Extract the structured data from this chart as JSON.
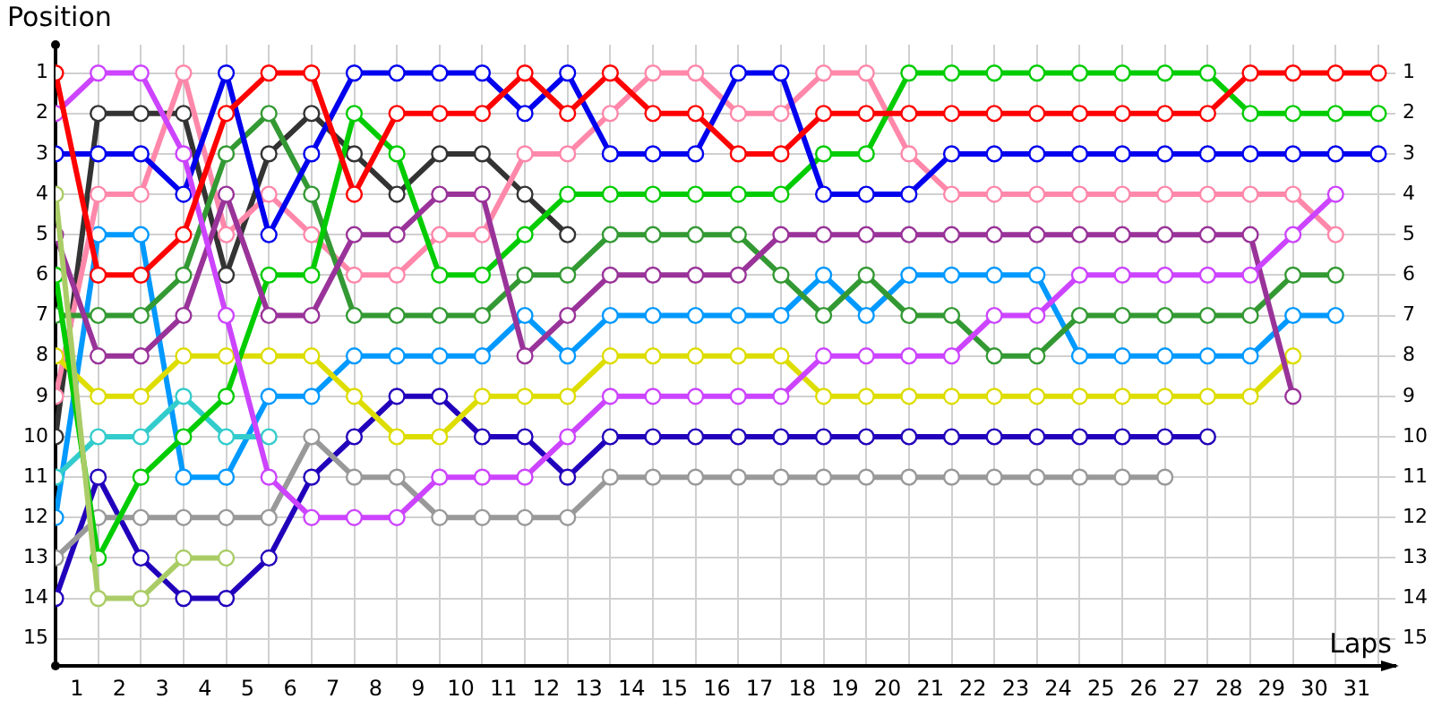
{
  "chart_data": {
    "type": "line",
    "xlabel": "Laps",
    "ylabel": "Position",
    "x": [
      0,
      1,
      2,
      3,
      4,
      5,
      6,
      7,
      8,
      9,
      10,
      11,
      12,
      13,
      14,
      15,
      16,
      17,
      18,
      19,
      20,
      21,
      22,
      23,
      24,
      25,
      26,
      27,
      28,
      29,
      30,
      31
    ],
    "xlim": [
      0,
      31.4
    ],
    "xticks": [
      {
        "value": 0,
        "label": null
      },
      {
        "value": 0.5,
        "label": "1"
      },
      {
        "value": 1,
        "label": null
      },
      {
        "value": 1.5,
        "label": "2"
      },
      {
        "value": 2,
        "label": null
      },
      {
        "value": 2.5,
        "label": "3"
      },
      {
        "value": 3,
        "label": null
      },
      {
        "value": 3.5,
        "label": "4"
      },
      {
        "value": 4,
        "label": null
      },
      {
        "value": 4.5,
        "label": "5"
      },
      {
        "value": 5,
        "label": null
      },
      {
        "value": 5.5,
        "label": "6"
      },
      {
        "value": 6,
        "label": null
      },
      {
        "value": 6.5,
        "label": "7"
      },
      {
        "value": 7,
        "label": null
      },
      {
        "value": 7.5,
        "label": "8"
      },
      {
        "value": 8,
        "label": null
      },
      {
        "value": 8.5,
        "label": "9"
      },
      {
        "value": 9,
        "label": null
      },
      {
        "value": 9.5,
        "label": "10"
      },
      {
        "value": 10,
        "label": null
      },
      {
        "value": 10.5,
        "label": "11"
      },
      {
        "value": 11,
        "label": null
      },
      {
        "value": 11.5,
        "label": "12"
      },
      {
        "value": 12,
        "label": null
      },
      {
        "value": 12.5,
        "label": "13"
      },
      {
        "value": 13,
        "label": null
      },
      {
        "value": 13.5,
        "label": "14"
      },
      {
        "value": 14,
        "label": null
      },
      {
        "value": 14.5,
        "label": "15"
      },
      {
        "value": 15,
        "label": null
      },
      {
        "value": 15.5,
        "label": "16"
      },
      {
        "value": 16,
        "label": null
      },
      {
        "value": 16.5,
        "label": "17"
      },
      {
        "value": 17,
        "label": null
      },
      {
        "value": 17.5,
        "label": "18"
      },
      {
        "value": 18,
        "label": null
      },
      {
        "value": 18.5,
        "label": "19"
      },
      {
        "value": 19,
        "label": null
      },
      {
        "value": 19.5,
        "label": "20"
      },
      {
        "value": 20,
        "label": null
      },
      {
        "value": 20.5,
        "label": "21"
      },
      {
        "value": 21,
        "label": null
      },
      {
        "value": 21.5,
        "label": "22"
      },
      {
        "value": 22,
        "label": null
      },
      {
        "value": 22.5,
        "label": "23"
      },
      {
        "value": 23,
        "label": null
      },
      {
        "value": 23.5,
        "label": "24"
      },
      {
        "value": 24,
        "label": null
      },
      {
        "value": 24.5,
        "label": "25"
      },
      {
        "value": 25,
        "label": null
      },
      {
        "value": 25.5,
        "label": "26"
      },
      {
        "value": 26,
        "label": null
      },
      {
        "value": 26.5,
        "label": "27"
      },
      {
        "value": 27,
        "label": null
      },
      {
        "value": 27.5,
        "label": "28"
      },
      {
        "value": 28,
        "label": null
      },
      {
        "value": 28.5,
        "label": "29"
      },
      {
        "value": 29,
        "label": null
      },
      {
        "value": 29.5,
        "label": "30"
      },
      {
        "value": 30,
        "label": null
      },
      {
        "value": 30.5,
        "label": "31"
      },
      {
        "value": 31,
        "label": null
      }
    ],
    "ylim": [
      15.67,
      0.3
    ],
    "yticks": [
      1,
      2,
      3,
      4,
      5,
      6,
      7,
      8,
      9,
      10,
      11,
      12,
      13,
      14,
      15
    ],
    "y2lim": [
      15.67,
      0.3
    ],
    "y2ticks": [
      1,
      2,
      3,
      4,
      5,
      6,
      7,
      8,
      9,
      10,
      11,
      12,
      13,
      14,
      15
    ],
    "grid": true,
    "legend": false,
    "marker": "circle",
    "line_style": "solid",
    "series": [
      {
        "color": "#ff0000",
        "values": [
          1,
          6,
          6,
          5,
          2,
          1,
          1,
          4,
          2,
          2,
          2,
          1,
          2,
          1,
          2,
          2,
          3,
          3,
          2,
          2,
          2,
          2,
          2,
          2,
          2,
          2,
          2,
          2,
          1,
          1,
          1,
          1
        ]
      },
      {
        "color": "#cc44ff",
        "x": [
          0,
          1,
          2,
          3,
          4,
          5,
          6,
          7,
          8,
          9,
          10,
          11,
          12,
          13,
          14,
          15,
          16,
          17,
          18,
          19,
          20,
          21,
          22,
          23,
          24,
          25,
          26,
          27,
          28,
          29,
          30
        ],
        "values": [
          2,
          1,
          1,
          3,
          7,
          11,
          12,
          12,
          12,
          11,
          11,
          11,
          10,
          9,
          9,
          9,
          9,
          9,
          8,
          8,
          8,
          8,
          7,
          7,
          6,
          6,
          6,
          6,
          6,
          5,
          4
        ]
      },
      {
        "color": "#0000ee",
        "values": [
          3,
          3,
          3,
          4,
          1,
          5,
          3,
          1,
          1,
          1,
          1,
          2,
          1,
          3,
          3,
          3,
          1,
          1,
          4,
          4,
          4,
          3,
          3,
          3,
          3,
          3,
          3,
          3,
          3,
          3,
          3,
          3
        ]
      },
      {
        "color": "#aacc66",
        "x": [
          0,
          1,
          2,
          3,
          4
        ],
        "values": [
          4,
          14,
          14,
          13,
          13
        ]
      },
      {
        "color": "#993399",
        "x": [
          0,
          1,
          2,
          3,
          4,
          5,
          6,
          7,
          8,
          9,
          10,
          11,
          12,
          13,
          14,
          15,
          16,
          17,
          18,
          19,
          20,
          21,
          22,
          23,
          24,
          25,
          26,
          27,
          28,
          29
        ],
        "values": [
          5,
          8,
          8,
          7,
          4,
          7,
          7,
          5,
          5,
          4,
          4,
          8,
          7,
          6,
          6,
          6,
          6,
          5,
          5,
          5,
          5,
          5,
          5,
          5,
          5,
          5,
          5,
          5,
          5,
          9
        ]
      },
      {
        "color": "#00cc00",
        "values": [
          6,
          13,
          11,
          10,
          9,
          6,
          6,
          2,
          3,
          6,
          6,
          5,
          4,
          4,
          4,
          4,
          4,
          4,
          3,
          3,
          1,
          1,
          1,
          1,
          1,
          1,
          1,
          1,
          2,
          2,
          2,
          2
        ]
      },
      {
        "color": "#339933",
        "x": [
          0,
          1,
          2,
          3,
          4,
          5,
          6,
          7,
          8,
          9,
          10,
          11,
          12,
          13,
          14,
          15,
          16,
          17,
          18,
          19,
          20,
          21,
          22,
          23,
          24,
          25,
          26,
          27,
          28,
          29,
          30
        ],
        "values": [
          7,
          7,
          7,
          6,
          3,
          2,
          4,
          7,
          7,
          7,
          7,
          6,
          6,
          5,
          5,
          5,
          5,
          6,
          7,
          6,
          7,
          7,
          8,
          8,
          7,
          7,
          7,
          7,
          7,
          6,
          6
        ]
      },
      {
        "color": "#dddd00",
        "x": [
          0,
          1,
          2,
          3,
          4,
          5,
          6,
          7,
          8,
          9,
          10,
          11,
          12,
          13,
          14,
          15,
          16,
          17,
          18,
          19,
          20,
          21,
          22,
          23,
          24,
          25,
          26,
          27,
          28,
          29
        ],
        "values": [
          8,
          9,
          9,
          8,
          8,
          8,
          8,
          9,
          10,
          10,
          9,
          9,
          9,
          8,
          8,
          8,
          8,
          8,
          9,
          9,
          9,
          9,
          9,
          9,
          9,
          9,
          9,
          9,
          9,
          8
        ]
      },
      {
        "color": "#ff88aa",
        "x": [
          0,
          1,
          2,
          3,
          4,
          5,
          6,
          7,
          8,
          9,
          10,
          11,
          12,
          13,
          14,
          15,
          16,
          17,
          18,
          19,
          20,
          21,
          22,
          23,
          24,
          25,
          26,
          27,
          28,
          29,
          30
        ],
        "values": [
          9,
          4,
          4,
          1,
          5,
          4,
          5,
          6,
          6,
          5,
          5,
          3,
          3,
          2,
          1,
          1,
          2,
          2,
          1,
          1,
          3,
          4,
          4,
          4,
          4,
          4,
          4,
          4,
          4,
          4,
          5
        ]
      },
      {
        "color": "#333333",
        "x": [
          0,
          1,
          2,
          3,
          4,
          5,
          6,
          7,
          8,
          9,
          10,
          11,
          12
        ],
        "values": [
          10,
          2,
          2,
          2,
          6,
          3,
          2,
          3,
          4,
          3,
          3,
          4,
          5
        ]
      },
      {
        "color": "#33cccc",
        "x": [
          0,
          1,
          2,
          3,
          4,
          5
        ],
        "values": [
          11,
          10,
          10,
          9,
          10,
          10
        ]
      },
      {
        "color": "#0099ff",
        "x": [
          0,
          1,
          2,
          3,
          4,
          5,
          6,
          7,
          8,
          9,
          10,
          11,
          12,
          13,
          14,
          15,
          16,
          17,
          18,
          19,
          20,
          21,
          22,
          23,
          24,
          25,
          26,
          27,
          28,
          29,
          30
        ],
        "values": [
          12,
          5,
          5,
          11,
          11,
          9,
          9,
          8,
          8,
          8,
          8,
          7,
          8,
          7,
          7,
          7,
          7,
          7,
          6,
          7,
          6,
          6,
          6,
          6,
          8,
          8,
          8,
          8,
          8,
          7,
          7
        ]
      },
      {
        "color": "#999999",
        "x": [
          0,
          1,
          2,
          3,
          4,
          5,
          6,
          7,
          8,
          9,
          10,
          11,
          12,
          13,
          14,
          15,
          16,
          17,
          18,
          19,
          20,
          21,
          22,
          23,
          24,
          25,
          26
        ],
        "values": [
          13,
          12,
          12,
          12,
          12,
          12,
          10,
          11,
          11,
          12,
          12,
          12,
          12,
          11,
          11,
          11,
          11,
          11,
          11,
          11,
          11,
          11,
          11,
          11,
          11,
          11,
          11
        ]
      },
      {
        "color": "#2200bb",
        "x": [
          0,
          1,
          2,
          3,
          4,
          5,
          6,
          7,
          8,
          9,
          10,
          11,
          12,
          13,
          14,
          15,
          16,
          17,
          18,
          19,
          20,
          21,
          22,
          23,
          24,
          25,
          26,
          27
        ],
        "values": [
          14,
          11,
          13,
          14,
          14,
          13,
          11,
          10,
          9,
          9,
          10,
          10,
          11,
          10,
          10,
          10,
          10,
          10,
          10,
          10,
          10,
          10,
          10,
          10,
          10,
          10,
          10,
          10
        ]
      }
    ]
  }
}
